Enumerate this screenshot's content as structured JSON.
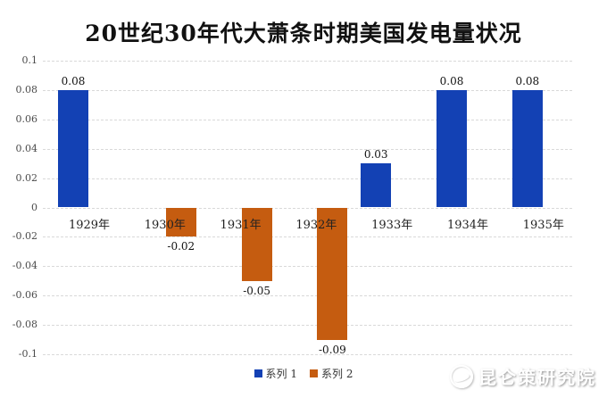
{
  "title": "20世纪30年代大萧条时期美国发电量状况",
  "chart_data": {
    "type": "bar",
    "title": "20世纪30年代大萧条时期美国发电量状况",
    "categories": [
      "1929年",
      "1930年",
      "1931年",
      "1932年",
      "1933年",
      "1934年",
      "1935年"
    ],
    "series": [
      {
        "name": "系列 1",
        "color": "#1341b4",
        "values": [
          0.08,
          null,
          null,
          null,
          0.03,
          0.08,
          0.08
        ],
        "labels": [
          "0.08",
          null,
          null,
          null,
          "0.03",
          "0.08",
          "0.08"
        ]
      },
      {
        "name": "系列 2",
        "color": "#c55c10",
        "values": [
          null,
          -0.02,
          -0.05,
          -0.09,
          null,
          null,
          null
        ],
        "labels": [
          null,
          "-0.02",
          "-0.05",
          "-0.09",
          null,
          null,
          null
        ]
      }
    ],
    "ylim": [
      -0.1,
      0.1
    ],
    "ytick_step": 0.02,
    "yticks": [
      "0.1",
      "0.08",
      "0.06",
      "0.04",
      "0.02",
      "0",
      "-0.02",
      "-0.04",
      "-0.06",
      "-0.08",
      "-0.1"
    ],
    "grid": true,
    "grid_style": "dashed",
    "legend_position": "bottom",
    "value_labels_visible": true
  },
  "legend": {
    "items": [
      {
        "label": "系列 1",
        "color": "#1341b4"
      },
      {
        "label": "系列 2",
        "color": "#c55c10"
      }
    ]
  },
  "watermark": {
    "text": "昆仑策研究院"
  }
}
